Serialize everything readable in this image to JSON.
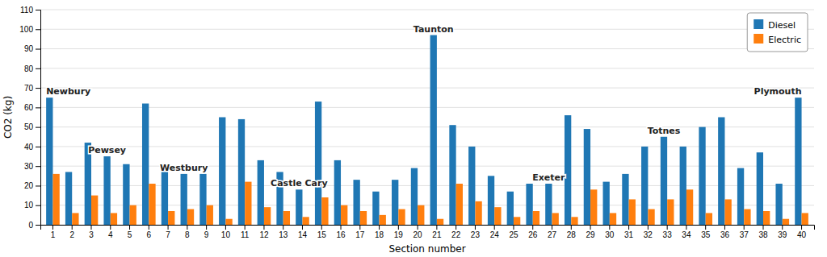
{
  "chart_data": {
    "type": "bar",
    "categories": [
      1,
      2,
      3,
      4,
      5,
      6,
      7,
      8,
      9,
      10,
      11,
      12,
      13,
      14,
      15,
      16,
      17,
      18,
      19,
      20,
      21,
      22,
      23,
      24,
      25,
      26,
      27,
      28,
      29,
      30,
      31,
      32,
      33,
      34,
      35,
      36,
      37,
      38,
      39,
      40
    ],
    "series": [
      {
        "name": "Diesel",
        "values": [
          65,
          27,
          42,
          35,
          31,
          62,
          30,
          26,
          26,
          55,
          54,
          33,
          27,
          18,
          63,
          33,
          23,
          17,
          23,
          29,
          97,
          51,
          40,
          25,
          17,
          21,
          21,
          56,
          49,
          22,
          26,
          40,
          45,
          40,
          50,
          55,
          29,
          37,
          21,
          65
        ]
      },
      {
        "name": "Electric",
        "values": [
          26,
          6,
          15,
          6,
          10,
          21,
          7,
          8,
          10,
          3,
          22,
          9,
          7,
          4,
          14,
          10,
          7,
          5,
          8,
          10,
          3,
          21,
          12,
          9,
          4,
          7,
          6,
          4,
          18,
          6,
          13,
          8,
          13,
          18,
          6,
          13,
          8,
          7,
          3,
          6
        ]
      }
    ],
    "xlabel": "Section number",
    "ylabel": "CO2 (kg)",
    "ylim": [
      0,
      110
    ],
    "yticks": [
      0,
      10,
      20,
      30,
      40,
      50,
      60,
      70,
      80,
      90,
      100,
      110
    ],
    "grid": true,
    "legend": "upper right",
    "annotations": [
      {
        "text": "Newbury",
        "x": 1
      },
      {
        "text": "Pewsey",
        "x": 4
      },
      {
        "text": "Westbury",
        "x": 8
      },
      {
        "text": "Castle Cary",
        "x": 14
      },
      {
        "text": "Taunton",
        "x": 21
      },
      {
        "text": "Exeter",
        "x": 27
      },
      {
        "text": "Totnes",
        "x": 33
      },
      {
        "text": "Plymouth",
        "x": 40
      }
    ]
  }
}
